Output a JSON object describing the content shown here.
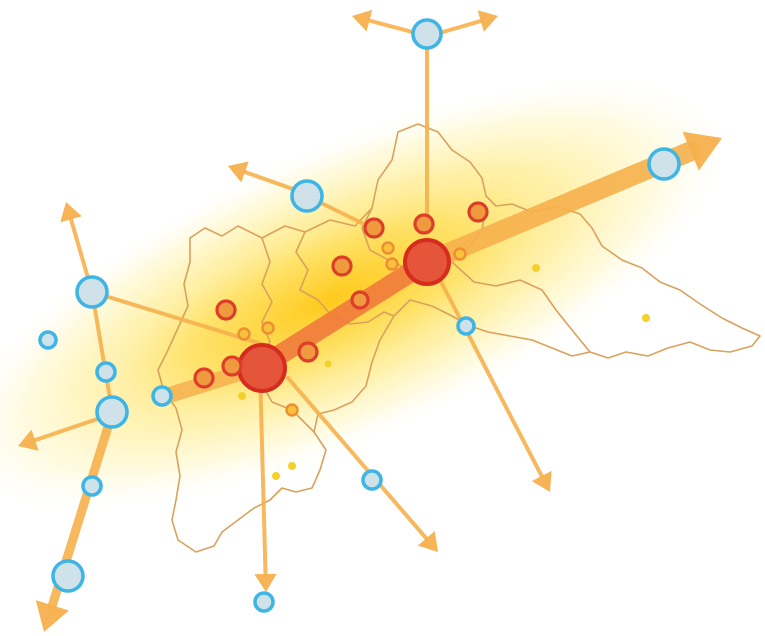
{
  "map": {
    "colors": {
      "background": "#ffffff",
      "glow_core": "#ffd21f",
      "glow_outer": "#fff3a8",
      "border": "#d9a15c",
      "arrow": "#f6b04d",
      "main_axis": "#ef7a3c",
      "major_center_fill": "#e4553a",
      "major_center_ring": "#d52c1d",
      "secondary_fill": "#ef9a3e",
      "secondary_ring": "#dd3e2a",
      "tertiary_fill": "#f6c23b",
      "tertiary_ring": "#ee8d33",
      "small_dot": "#f5cf2a",
      "external_fill": "#cfe2ea",
      "external_ring": "#3fb5e6"
    },
    "node_types": [
      "major-center",
      "secondary-center",
      "tertiary-center",
      "small-settlement",
      "external-node"
    ]
  }
}
